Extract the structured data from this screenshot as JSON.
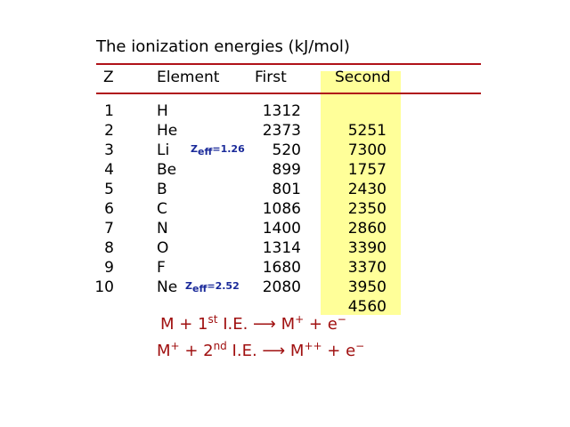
{
  "title": "The ionization energies (kJ/mol)",
  "headers": {
    "z": "Z",
    "element": "Element",
    "first": "First",
    "second": "Second"
  },
  "rows": [
    {
      "z": "1",
      "el": "H",
      "first": "1312"
    },
    {
      "z": "2",
      "el": "He",
      "first": "2373"
    },
    {
      "z": "3",
      "el": "Li",
      "first": "520"
    },
    {
      "z": "4",
      "el": "Be",
      "first": "899"
    },
    {
      "z": "5",
      "el": "B",
      "first": "801"
    },
    {
      "z": "6",
      "el": "C",
      "first": "1086"
    },
    {
      "z": "7",
      "el": "N",
      "first": "1400"
    },
    {
      "z": "8",
      "el": "O",
      "first": "1314"
    },
    {
      "z": "9",
      "el": "F",
      "first": "1680"
    },
    {
      "z": "10",
      "el": "Ne",
      "first": "2080"
    }
  ],
  "second": [
    "5251",
    "7300",
    "1757",
    "2430",
    "2350",
    "2860",
    "3390",
    "3370",
    "3950",
    "4560"
  ],
  "zeff_li": {
    "z": "Z",
    "sub": "eff",
    "val": "=1.26"
  },
  "zeff_ne": {
    "z": "Z",
    "sub": "eff",
    "val": "=2.52"
  },
  "eq1": {
    "a": "M + 1",
    "sup": "st",
    "b": " I.E. ⟶ M",
    "sup2": "+",
    "c": " + e",
    "sup3": "−"
  },
  "eq2": {
    "a": "M",
    "sup0": "+",
    "a2": " + 2",
    "sup": "nd",
    "b": " I.E. ⟶ M",
    "sup2": "++",
    "c": " + e",
    "sup3": "−"
  },
  "colors": {
    "rule": "#b01218",
    "highlight": "#ffff99",
    "equation": "#a01010",
    "zeff": "#1a2a9a"
  }
}
